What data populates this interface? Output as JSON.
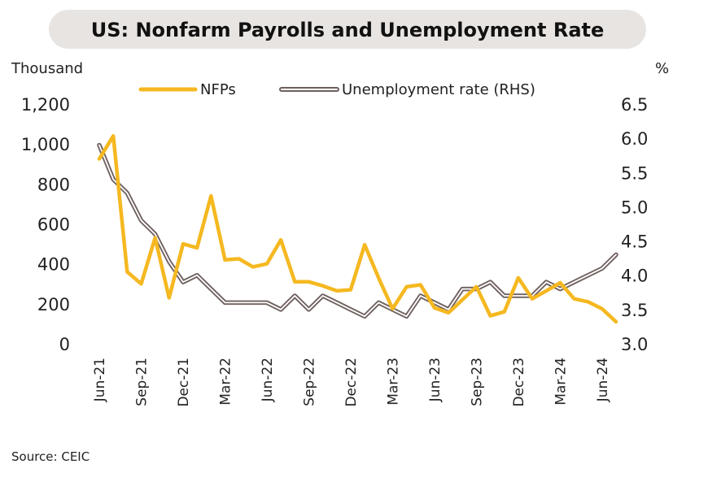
{
  "chart_data": {
    "type": "line",
    "title": "US: Nonfarm Payrolls and Unemployment Rate",
    "ylabel_left": "Thousand",
    "ylabel_right": "%",
    "source": "Source: CEIC",
    "ylim_left": [
      0,
      1200
    ],
    "ylim_right": [
      3.0,
      6.5
    ],
    "yticks_left": [
      "0",
      "200",
      "400",
      "600",
      "800",
      "1,000",
      "1,200"
    ],
    "yticks_right": [
      "3.0",
      "3.5",
      "4.0",
      "4.5",
      "5.0",
      "5.5",
      "6.0",
      "6.5"
    ],
    "x": [
      "Jun-21",
      "Jul-21",
      "Aug-21",
      "Sep-21",
      "Oct-21",
      "Nov-21",
      "Dec-21",
      "Jan-22",
      "Feb-22",
      "Mar-22",
      "Apr-22",
      "May-22",
      "Jun-22",
      "Jul-22",
      "Aug-22",
      "Sep-22",
      "Oct-22",
      "Nov-22",
      "Dec-22",
      "Jan-23",
      "Feb-23",
      "Mar-23",
      "Apr-23",
      "May-23",
      "Jun-23",
      "Jul-23",
      "Aug-23",
      "Sep-23",
      "Oct-23",
      "Nov-23",
      "Dec-23",
      "Jan-24",
      "Feb-24",
      "Mar-24",
      "Apr-24",
      "May-24",
      "Jun-24",
      "Jul-24"
    ],
    "xtick_labels": [
      "Jun-21",
      "Sep-21",
      "Dec-21",
      "Mar-22",
      "Jun-22",
      "Sep-22",
      "Dec-22",
      "Mar-23",
      "Jun-23",
      "Sep-23",
      "Dec-23",
      "Mar-24",
      "Jun-24"
    ],
    "series": [
      {
        "name": "NFPs",
        "axis": "left",
        "color": "#f5b820",
        "values": [
          925,
          1040,
          360,
          300,
          530,
          230,
          500,
          480,
          740,
          420,
          425,
          385,
          400,
          520,
          310,
          310,
          290,
          265,
          270,
          495,
          330,
          175,
          285,
          295,
          180,
          155,
          220,
          285,
          140,
          160,
          330,
          225,
          265,
          305,
          225,
          210,
          175,
          110
        ]
      },
      {
        "name": "Unemployment rate (RHS)",
        "axis": "right",
        "color": "#7a6a68",
        "values": [
          5.9,
          5.4,
          5.2,
          4.8,
          4.6,
          4.2,
          3.9,
          4.0,
          3.8,
          3.6,
          3.6,
          3.6,
          3.6,
          3.5,
          3.7,
          3.5,
          3.7,
          3.6,
          3.5,
          3.4,
          3.6,
          3.5,
          3.4,
          3.7,
          3.6,
          3.5,
          3.8,
          3.8,
          3.9,
          3.7,
          3.7,
          3.7,
          3.9,
          3.8,
          3.9,
          4.0,
          4.1,
          4.3
        ]
      }
    ],
    "legend_position": "top",
    "grid": false
  }
}
